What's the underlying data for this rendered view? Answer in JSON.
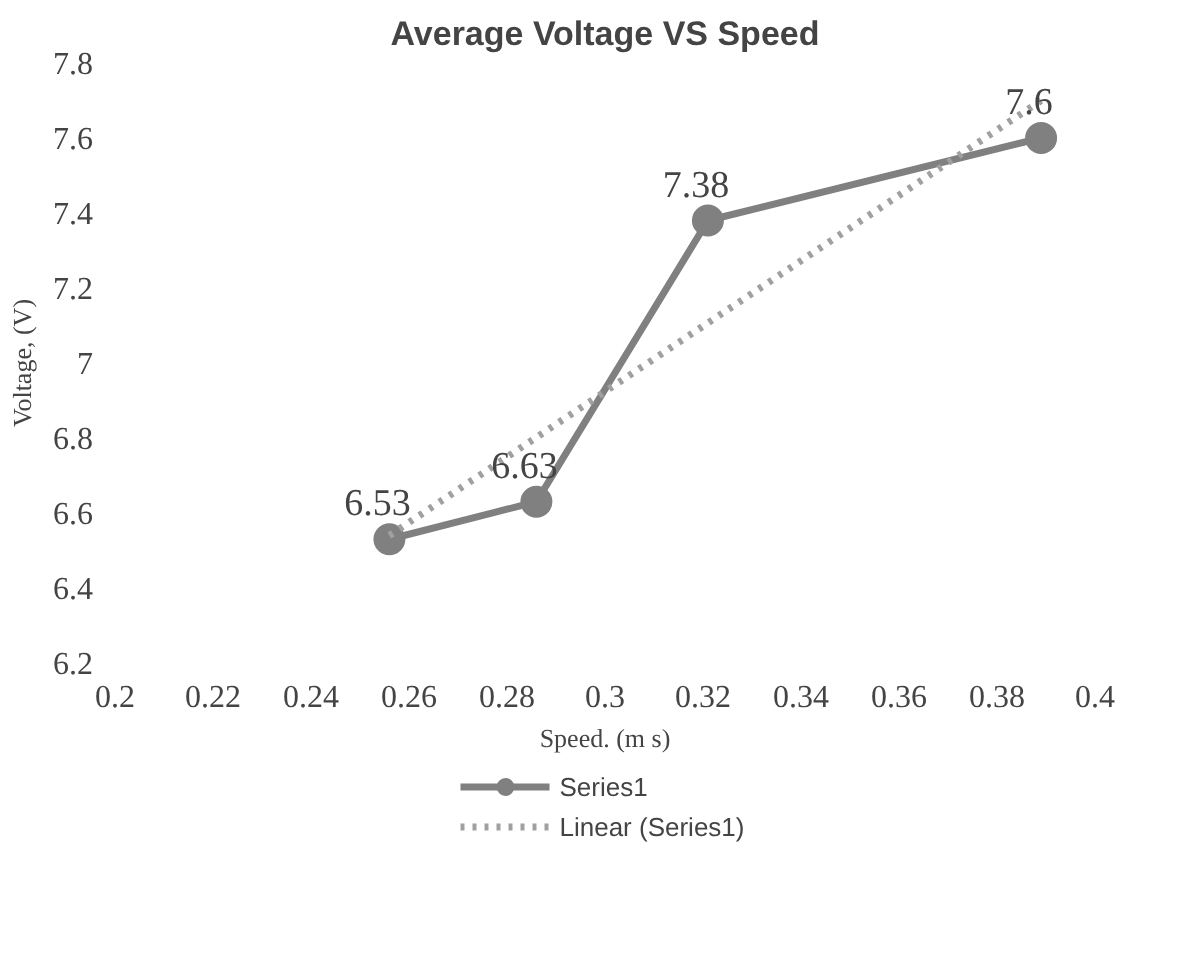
{
  "chart_data": {
    "type": "line",
    "title": "Average Voltage VS Speed",
    "xlabel": "Speed. (m s)",
    "ylabel": "Voltage, (V)",
    "xlim": [
      0.2,
      0.4
    ],
    "xticks": [
      0.2,
      0.22,
      0.24,
      0.26,
      0.28,
      0.3,
      0.32,
      0.34,
      0.36,
      0.38,
      0.4
    ],
    "ylim": [
      6.2,
      7.8
    ],
    "yticks": [
      6.2,
      6.4,
      6.6,
      6.8,
      7,
      7.2,
      7.4,
      7.6,
      7.8
    ],
    "grid": false,
    "legend": "bottom",
    "series": [
      {
        "name": "Series1",
        "color": "#808080",
        "marker": "circle",
        "line_style": "solid",
        "x": [
          0.256,
          0.286,
          0.321,
          0.389
        ],
        "values": [
          6.53,
          6.63,
          7.38,
          7.6
        ],
        "value_labels": [
          "6.53",
          "6.63",
          "7.38",
          "7.6"
        ]
      },
      {
        "name": "Linear (Series1)",
        "color": "#a0a0a0",
        "marker": "none",
        "line_style": "dotted",
        "x": [
          0.256,
          0.389
        ],
        "values": [
          6.54,
          7.7
        ]
      }
    ]
  }
}
